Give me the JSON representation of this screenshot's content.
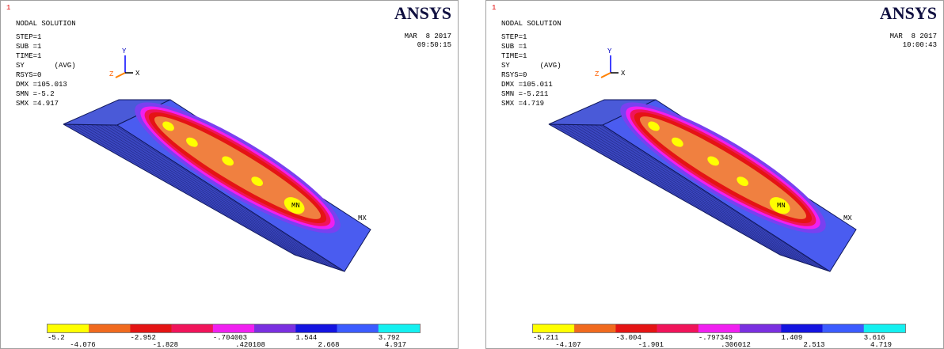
{
  "panels": [
    {
      "window": "1",
      "title": "NODAL SOLUTION",
      "info": [
        "STEP=1",
        "SUB =1",
        "TIME=1",
        "SY       (AVG)",
        "RSYS=0",
        "DMX =105.013",
        "SMN =-5.2",
        "SMX =4.917"
      ],
      "date": "MAR  8 2017",
      "time": "09:50:15",
      "logo": "ANSYS",
      "min_label": "MN",
      "max_label": "MX",
      "axes": {
        "y": "Y",
        "z": "Z",
        "x": "X"
      },
      "legend": [
        "-5.2",
        "-4.076",
        "-2.952",
        "-1.828",
        "-.704003",
        ".420108",
        "1.544",
        "2.668",
        "3.792",
        "4.917"
      ]
    },
    {
      "window": "1",
      "title": "NODAL SOLUTION",
      "info": [
        "STEP=1",
        "SUB =1",
        "TIME=1",
        "SY       (AVG)",
        "RSYS=0",
        "DMX =105.011",
        "SMN =-5.211",
        "SMX =4.719"
      ],
      "date": "MAR  8 2017",
      "time": "10:00:43",
      "logo": "ANSYS",
      "min_label": "MN",
      "max_label": "MX",
      "axes": {
        "y": "Y",
        "z": "Z",
        "x": "X"
      },
      "legend": [
        "-5.211",
        "-4.107",
        "-3.004",
        "-1.901",
        "-.797349",
        ".306012",
        "1.409",
        "2.513",
        "3.616",
        "4.719"
      ]
    }
  ],
  "legend_colors": [
    "#ffff00",
    "#f06a1e",
    "#e41414",
    "#f0145a",
    "#f020f0",
    "#7a30e0",
    "#1414e0",
    "#3c5cff",
    "#14f0f0"
  ]
}
